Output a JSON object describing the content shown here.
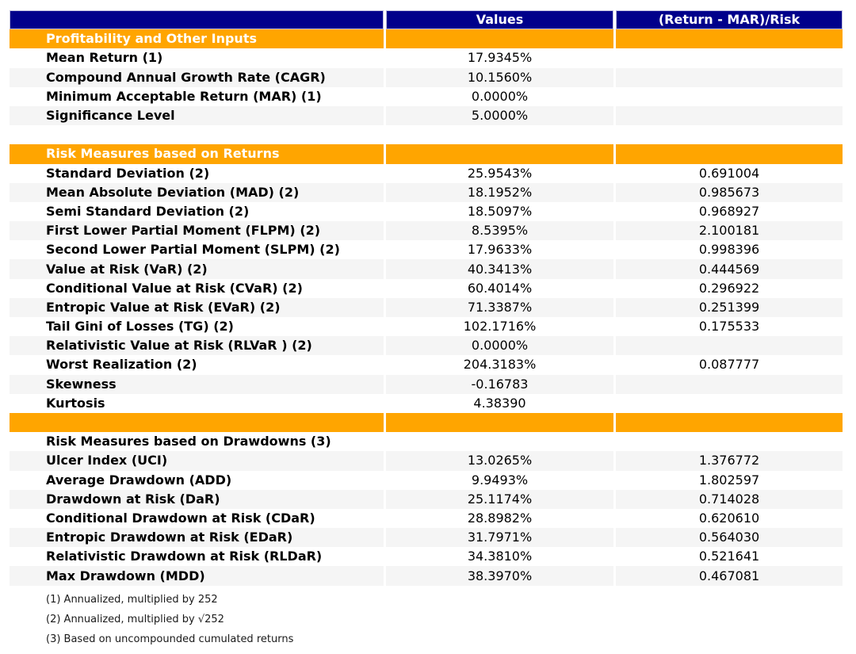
{
  "style": {
    "header_bg": "#00008B",
    "header_border": "#BBBBDD",
    "section_bg": "#FFA500",
    "stripe_bg": "#F5F5F5",
    "header_text": "#FFFFFF",
    "text": "#000000"
  },
  "chart_data": {
    "type": "table",
    "columns": [
      "",
      "Values",
      "(Return - MAR)/Risk"
    ],
    "rows": [
      {
        "kind": "section",
        "label": "Profitability and Other Inputs",
        "value": "",
        "ratio": ""
      },
      {
        "kind": "data",
        "stripe": false,
        "label": "Mean Return (1)",
        "value": "17.9345%",
        "ratio": ""
      },
      {
        "kind": "data",
        "stripe": true,
        "label": "Compound Annual Growth Rate (CAGR)",
        "value": "10.1560%",
        "ratio": ""
      },
      {
        "kind": "data",
        "stripe": false,
        "label": "Minimum Acceptable Return (MAR) (1)",
        "value": "0.0000%",
        "ratio": ""
      },
      {
        "kind": "data",
        "stripe": true,
        "label": "Significance Level",
        "value": "5.0000%",
        "ratio": ""
      },
      {
        "kind": "spacer",
        "label": "",
        "value": "",
        "ratio": ""
      },
      {
        "kind": "section",
        "label": "Risk Measures based on Returns",
        "value": "",
        "ratio": ""
      },
      {
        "kind": "data",
        "stripe": false,
        "label": "Standard Deviation (2)",
        "value": "25.9543%",
        "ratio": "0.691004"
      },
      {
        "kind": "data",
        "stripe": true,
        "label": "Mean Absolute Deviation (MAD) (2)",
        "value": "18.1952%",
        "ratio": "0.985673"
      },
      {
        "kind": "data",
        "stripe": false,
        "label": "Semi Standard Deviation (2)",
        "value": "18.5097%",
        "ratio": "0.968927"
      },
      {
        "kind": "data",
        "stripe": true,
        "label": "First Lower Partial Moment (FLPM) (2)",
        "value": "8.5395%",
        "ratio": "2.100181"
      },
      {
        "kind": "data",
        "stripe": false,
        "label": "Second Lower Partial Moment (SLPM) (2)",
        "value": "17.9633%",
        "ratio": "0.998396"
      },
      {
        "kind": "data",
        "stripe": true,
        "label": "Value at Risk (VaR) (2)",
        "value": "40.3413%",
        "ratio": "0.444569"
      },
      {
        "kind": "data",
        "stripe": false,
        "label": "Conditional Value at Risk (CVaR) (2)",
        "value": "60.4014%",
        "ratio": "0.296922"
      },
      {
        "kind": "data",
        "stripe": true,
        "label": "Entropic Value at Risk (EVaR) (2)",
        "value": "71.3387%",
        "ratio": "0.251399"
      },
      {
        "kind": "data",
        "stripe": false,
        "label": "Tail Gini of Losses (TG) (2)",
        "value": "102.1716%",
        "ratio": "0.175533"
      },
      {
        "kind": "data",
        "stripe": true,
        "label": "Relativistic Value at Risk (RLVaR ) (2)",
        "value": "0.0000%",
        "ratio": ""
      },
      {
        "kind": "data",
        "stripe": false,
        "label": "Worst Realization (2)",
        "value": "204.3183%",
        "ratio": "0.087777"
      },
      {
        "kind": "data",
        "stripe": true,
        "label": "Skewness",
        "value": "-0.16783",
        "ratio": ""
      },
      {
        "kind": "data",
        "stripe": false,
        "label": "Kurtosis",
        "value": "4.38390",
        "ratio": ""
      },
      {
        "kind": "section",
        "label": "",
        "value": "",
        "ratio": ""
      },
      {
        "kind": "title",
        "label": "Risk Measures based on Drawdowns (3)",
        "value": "",
        "ratio": ""
      },
      {
        "kind": "data",
        "stripe": true,
        "label": "Ulcer Index (UCI)",
        "value": "13.0265%",
        "ratio": "1.376772"
      },
      {
        "kind": "data",
        "stripe": false,
        "label": "Average Drawdown (ADD)",
        "value": "9.9493%",
        "ratio": "1.802597"
      },
      {
        "kind": "data",
        "stripe": true,
        "label": "Drawdown at Risk (DaR)",
        "value": "25.1174%",
        "ratio": "0.714028"
      },
      {
        "kind": "data",
        "stripe": false,
        "label": "Conditional Drawdown at Risk (CDaR)",
        "value": "28.8982%",
        "ratio": "0.620610"
      },
      {
        "kind": "data",
        "stripe": true,
        "label": "Entropic Drawdown at Risk (EDaR)",
        "value": "31.7971%",
        "ratio": "0.564030"
      },
      {
        "kind": "data",
        "stripe": false,
        "label": "Relativistic Drawdown at Risk (RLDaR)",
        "value": "34.3810%",
        "ratio": "0.521641"
      },
      {
        "kind": "data",
        "stripe": true,
        "label": "Max Drawdown (MDD)",
        "value": "38.3970%",
        "ratio": "0.467081"
      }
    ],
    "footnotes": [
      "(1) Annualized, multiplied by 252",
      "(2) Annualized, multiplied by √252",
      "(3) Based on uncompounded cumulated returns"
    ]
  }
}
